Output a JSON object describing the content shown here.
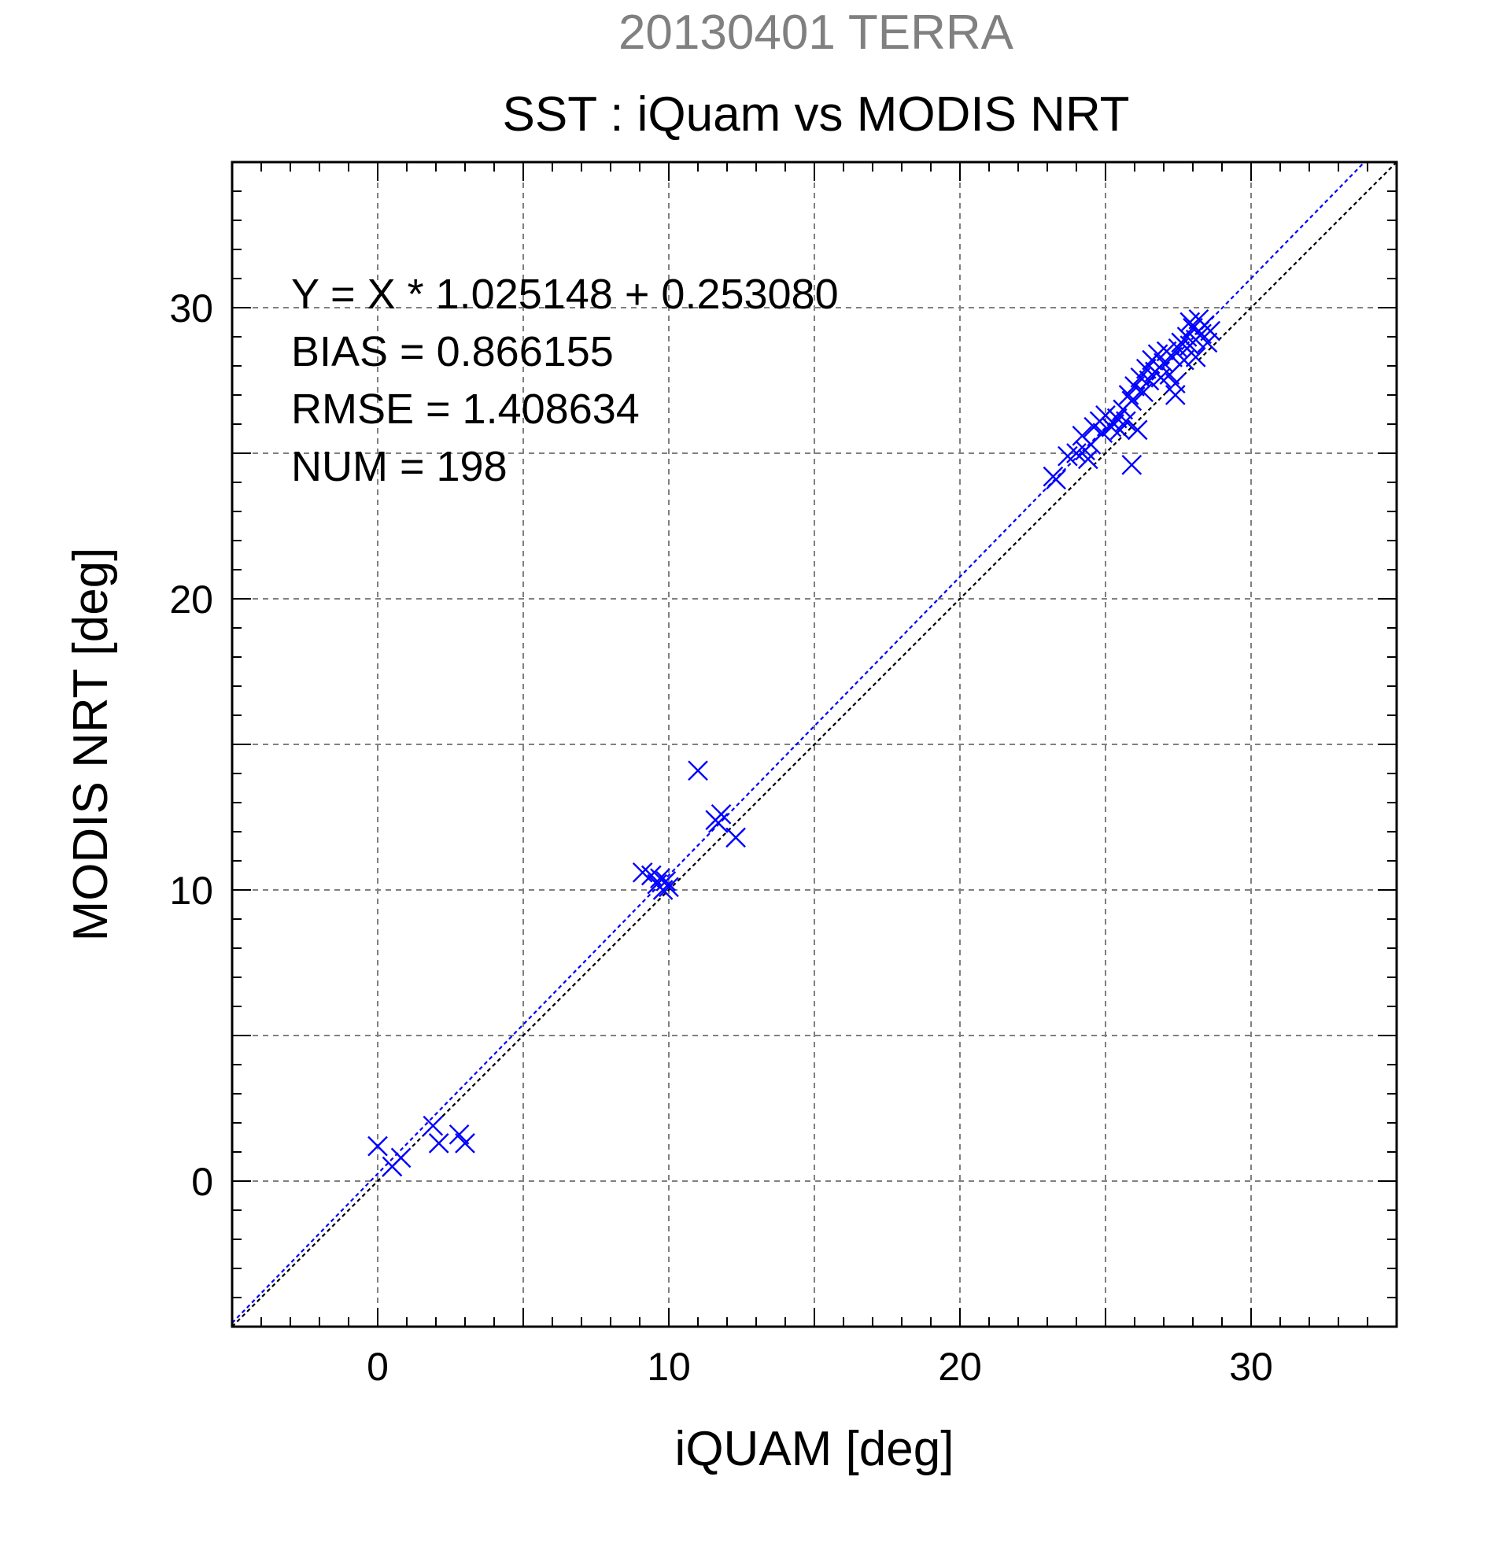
{
  "date_title": "20130401 TERRA",
  "chart_data": {
    "type": "scatter",
    "title": "SST : iQuam vs MODIS NRT",
    "xlabel": "iQUAM [deg]",
    "ylabel": "MODIS NRT [deg]",
    "xlim": [
      -5,
      35
    ],
    "ylim": [
      -5,
      35
    ],
    "xticks": [
      0,
      10,
      20,
      30
    ],
    "yticks": [
      0,
      10,
      20,
      30
    ],
    "x_tick_labels": [
      "0",
      "10",
      "20",
      "30"
    ],
    "y_tick_labels": [
      "0",
      "10",
      "20",
      "30"
    ],
    "grid": true,
    "marker": "x",
    "marker_color": "#0000ff",
    "stats": [
      "Y = X * 1.025148 + 0.253080",
      "BIAS = 0.866155",
      "RMSE = 1.408634",
      "NUM = 198"
    ],
    "lines": [
      {
        "kind": "identity",
        "slope": 1.0,
        "intercept": 0.0,
        "color": "#000000",
        "style": "dotted"
      },
      {
        "kind": "regression",
        "slope": 1.025148,
        "intercept": 0.25308,
        "color": "#0000ff",
        "style": "dotted"
      }
    ],
    "points": [
      [
        0.0,
        1.2
      ],
      [
        0.5,
        0.5
      ],
      [
        0.8,
        0.8
      ],
      [
        1.9,
        1.9
      ],
      [
        2.1,
        1.3
      ],
      [
        2.8,
        1.6
      ],
      [
        3.0,
        1.3
      ],
      [
        9.1,
        10.6
      ],
      [
        9.4,
        10.5
      ],
      [
        9.6,
        10.2
      ],
      [
        9.8,
        10.0
      ],
      [
        9.9,
        10.3
      ],
      [
        10.0,
        10.1
      ],
      [
        9.7,
        10.4
      ],
      [
        11.0,
        14.1
      ],
      [
        11.6,
        12.4
      ],
      [
        11.8,
        12.6
      ],
      [
        11.7,
        12.3
      ],
      [
        12.3,
        11.8
      ],
      [
        23.2,
        24.2
      ],
      [
        23.3,
        24.1
      ],
      [
        23.7,
        24.9
      ],
      [
        24.0,
        25.0
      ],
      [
        24.2,
        25.6
      ],
      [
        24.3,
        25.1
      ],
      [
        24.4,
        24.8
      ],
      [
        24.5,
        25.3
      ],
      [
        24.6,
        25.9
      ],
      [
        24.8,
        26.1
      ],
      [
        24.9,
        25.7
      ],
      [
        25.0,
        26.3
      ],
      [
        25.2,
        25.9
      ],
      [
        25.3,
        26.0
      ],
      [
        25.4,
        26.2
      ],
      [
        25.5,
        25.8
      ],
      [
        25.6,
        26.5
      ],
      [
        25.7,
        26.1
      ],
      [
        25.8,
        27.0
      ],
      [
        25.9,
        24.6
      ],
      [
        25.9,
        26.8
      ],
      [
        26.0,
        27.3
      ],
      [
        26.1,
        25.8
      ],
      [
        26.2,
        27.6
      ],
      [
        26.3,
        27.1
      ],
      [
        26.4,
        27.9
      ],
      [
        26.5,
        27.5
      ],
      [
        26.6,
        28.2
      ],
      [
        26.7,
        27.8
      ],
      [
        26.8,
        28.4
      ],
      [
        26.9,
        27.6
      ],
      [
        27.0,
        28.1
      ],
      [
        27.1,
        28.5
      ],
      [
        27.2,
        27.7
      ],
      [
        27.3,
        28.3
      ],
      [
        27.4,
        27.0
      ],
      [
        27.5,
        28.6
      ],
      [
        27.6,
        28.8
      ],
      [
        27.7,
        28.2
      ],
      [
        27.8,
        29.0
      ],
      [
        27.9,
        28.7
      ],
      [
        28.0,
        29.3
      ],
      [
        28.1,
        28.9
      ],
      [
        28.2,
        29.6
      ],
      [
        28.3,
        29.1
      ],
      [
        28.4,
        29.4
      ],
      [
        28.5,
        28.8
      ],
      [
        28.6,
        29.2
      ],
      [
        28.1,
        28.3
      ],
      [
        27.9,
        29.5
      ],
      [
        27.4,
        27.4
      ]
    ]
  }
}
